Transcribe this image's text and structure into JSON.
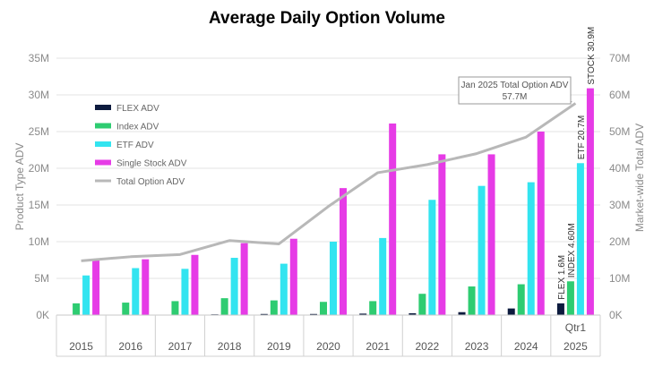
{
  "chart_data": {
    "type": "bar",
    "title": "Average Daily Option Volume",
    "ylabel": "Product Type ADV",
    "y2label": "Market-wide Total ADV",
    "ylim": [
      0,
      35
    ],
    "y2lim": [
      0,
      70
    ],
    "yticks": [
      "0K",
      "5M",
      "10M",
      "15M",
      "20M",
      "25M",
      "30M",
      "35M"
    ],
    "y2ticks": [
      "0K",
      "10M",
      "20M",
      "30M",
      "40M",
      "50M",
      "60M",
      "70M"
    ],
    "categories": [
      "2015",
      "2016",
      "2017",
      "2018",
      "2019",
      "2020",
      "2021",
      "2022",
      "2023",
      "2024",
      "2025"
    ],
    "category_sublabels": [
      "",
      "",
      "",
      "",
      "",
      "",
      "",
      "",
      "",
      "",
      "Qtr1"
    ],
    "series": [
      {
        "name": "FLEX ADV",
        "color": "#0d1b3e",
        "axis": "left",
        "values": [
          0.05,
          0.05,
          0.05,
          0.1,
          0.15,
          0.15,
          0.2,
          0.25,
          0.4,
          0.9,
          1.6
        ]
      },
      {
        "name": "Index ADV",
        "color": "#2ecc71",
        "axis": "left",
        "values": [
          1.6,
          1.7,
          1.9,
          2.3,
          2.0,
          1.8,
          1.9,
          2.9,
          3.9,
          4.2,
          4.6
        ]
      },
      {
        "name": "ETF ADV",
        "color": "#33e4f0",
        "axis": "left",
        "values": [
          5.4,
          6.4,
          6.3,
          7.8,
          7.0,
          10.0,
          10.5,
          15.7,
          17.6,
          18.1,
          20.7
        ]
      },
      {
        "name": "Single Stock ADV",
        "color": "#e63be6",
        "axis": "left",
        "values": [
          7.5,
          7.6,
          8.2,
          9.8,
          10.4,
          17.3,
          26.1,
          21.9,
          21.9,
          25.0,
          30.9
        ]
      },
      {
        "name": "Total Option ADV",
        "color": "#b8b8b8",
        "axis": "right",
        "type": "line",
        "values": [
          14.8,
          15.9,
          16.5,
          20.3,
          19.4,
          29.6,
          38.8,
          41.0,
          44.0,
          48.5,
          57.7
        ]
      }
    ],
    "bar_labels": [
      {
        "series": 0,
        "index": 10,
        "text": "FLEX 1.6M"
      },
      {
        "series": 1,
        "index": 10,
        "text": "INDEX 4.60M"
      },
      {
        "series": 2,
        "index": 10,
        "text": "ETF 20.7M"
      },
      {
        "series": 3,
        "index": 10,
        "text": "STOCK 30.9M"
      }
    ],
    "callout": {
      "index": 10,
      "line1": "Jan 2025 Total Option ADV",
      "line2": "57.7M"
    },
    "legend_position": "left"
  }
}
